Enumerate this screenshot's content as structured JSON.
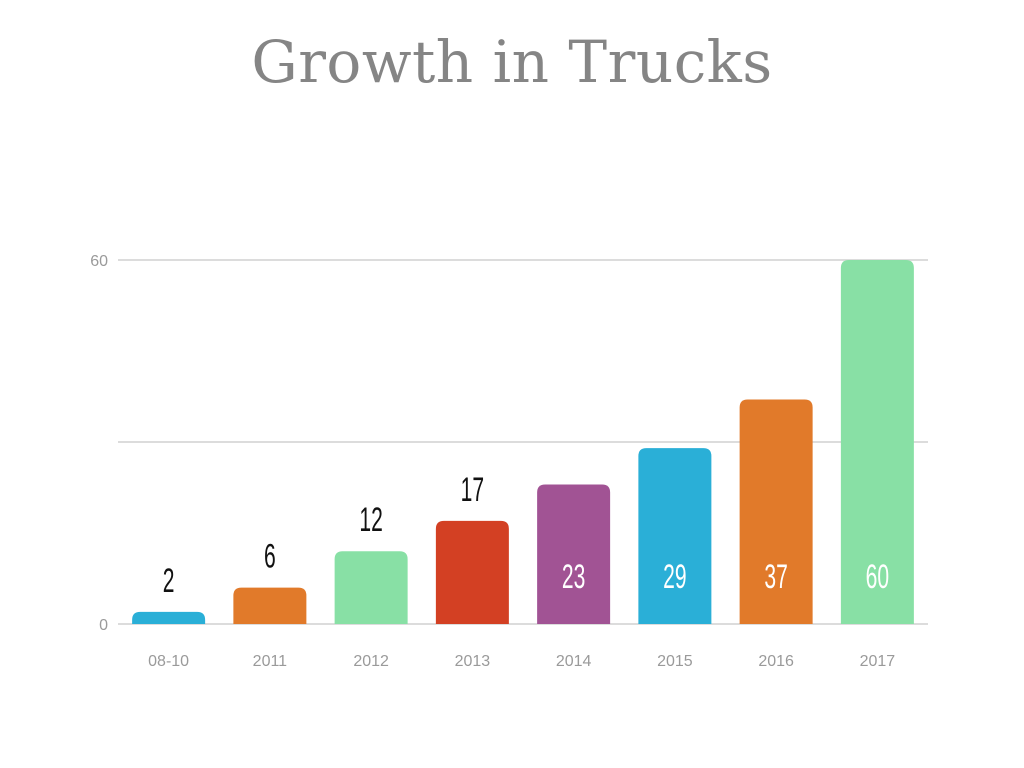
{
  "chart_data": {
    "type": "bar",
    "title": "Growth in Trucks",
    "xlabel": "",
    "ylabel": "",
    "categories": [
      "08-10",
      "2011",
      "2012",
      "2013",
      "2014",
      "2015",
      "2016",
      "2017"
    ],
    "values": [
      2,
      6,
      12,
      17,
      23,
      29,
      37,
      60
    ],
    "colors": [
      "#2aafd7",
      "#e17a2a",
      "#88e0a5",
      "#d34023",
      "#a15394",
      "#2aafd7",
      "#e17a2a",
      "#88e0a5"
    ],
    "yticks": [
      0,
      60
    ],
    "ylim": [
      0,
      60
    ],
    "grid": true,
    "legend": "none"
  }
}
